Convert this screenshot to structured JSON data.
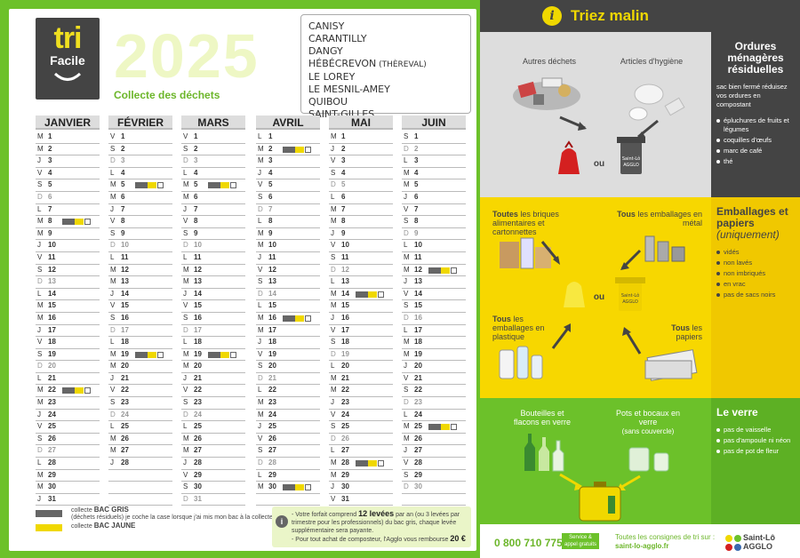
{
  "logo": {
    "line1": "tri",
    "line2": "Facile"
  },
  "year": "2025",
  "subtitle": "Collecte des déchets",
  "towns": [
    "CANISY",
    "CARANTILLY",
    "DANGY",
    "HÉBÉCREVON",
    "LE LOREY",
    "LE MESNIL-AMEY",
    "QUIBOU",
    "SAINT-GILLES"
  ],
  "towns_sub": "(THÈREVAL)",
  "months": [
    {
      "name": "JANVIER",
      "first_dow": 2,
      "days": 31,
      "picks": [
        8,
        22
      ]
    },
    {
      "name": "FÉVRIER",
      "first_dow": 5,
      "days": 28,
      "picks": [
        5,
        19
      ]
    },
    {
      "name": "MARS",
      "first_dow": 5,
      "days": 31,
      "picks": [
        5,
        19
      ]
    },
    {
      "name": "AVRIL",
      "first_dow": 1,
      "days": 30,
      "picks": [
        2,
        16,
        30
      ]
    },
    {
      "name": "MAI",
      "first_dow": 3,
      "days": 31,
      "picks": [
        14,
        28
      ]
    },
    {
      "name": "JUIN",
      "first_dow": 6,
      "days": 30,
      "picks": [
        12,
        25
      ]
    }
  ],
  "weekday_letters": [
    "L",
    "M",
    "M",
    "J",
    "V",
    "S",
    "D"
  ],
  "legend": {
    "gris_label": "collecte",
    "gris_bold": "BAC GRIS",
    "gris_note": "(déchets résiduels) je coche la case lorsque j'ai mis mon bac à la collecte",
    "jaune_label": "collecte",
    "jaune_bold": "BAC JAUNE"
  },
  "info": {
    "line1a": "- Votre forfait comprend",
    "line1b": "12 levées",
    "line1c": "par an (ou 3 levées par trimestre pour les professionnels) du bac gris, chaque levée supplémentaire sera payante.",
    "line2a": "- Pour tout achat de composteur, l'Agglo vous rembourse",
    "line2b": "20 €"
  },
  "right": {
    "title": "Triez malin",
    "s1": {
      "label_a": "Autres déchets",
      "label_b": "Articles d'hygiène",
      "ou": "ou",
      "bin_brand": "Saint-Lô AGGLO",
      "title": "Ordures ménagères résiduelles",
      "intro": "sac bien fermé réduisez vos ordures en compostant",
      "items": [
        "épluchures de fruits et légumes",
        "coquilles d'œufs",
        "marc de café",
        "thé"
      ]
    },
    "s2": {
      "a_bold": "Toutes",
      "a_rest": "les briques alimentaires et cartonnettes",
      "b_bold": "Tous",
      "b_rest": "les emballages en métal",
      "c_bold": "Tous",
      "c_rest": "les emballages en plastique",
      "d_bold": "Tous",
      "d_rest": "les papiers",
      "ou": "ou",
      "bin_brand": "Saint-Lô AGGLO",
      "title": "Emballages et papiers",
      "title_sub": "(uniquement)",
      "items": [
        "vidés",
        "non lavés",
        "non imbriqués",
        "en vrac",
        "pas de sacs noirs"
      ]
    },
    "s3": {
      "label_a": "Bouteilles et flacons en verre",
      "label_b": "Pots et bocaux en verre",
      "label_b_sub": "(sans couvercle)",
      "title": "Le verre",
      "items": [
        "pas de vaisselle",
        "pas d'ampoule ni néon",
        "pas de pot de fleur"
      ]
    },
    "footer": {
      "phone": "0 800 710 775",
      "service": "Service & appel gratuits",
      "consignes": "Toutes les consignes de tri sur :",
      "site": "saint-lo-agglo.fr",
      "brand1": "Saint-Lô",
      "brand2": "AGGLO"
    }
  },
  "colors": {
    "green": "#6cc12a",
    "yellow": "#f0d800",
    "dark": "#444444"
  }
}
